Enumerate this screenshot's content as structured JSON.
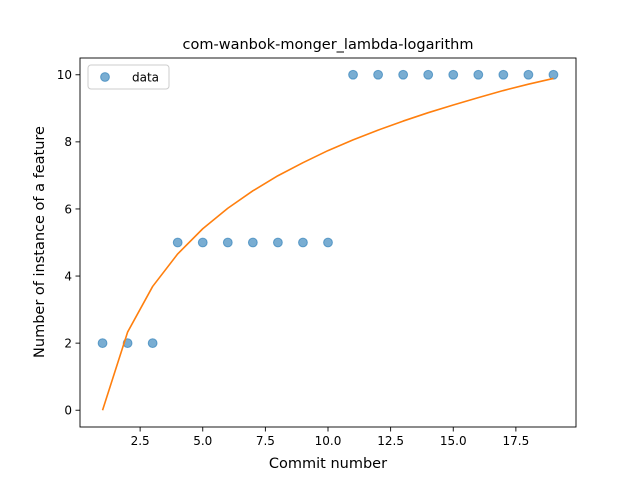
{
  "chart_data": {
    "type": "scatter",
    "title": "com-wanbok-monger_lambda-logarithm",
    "xlabel": "Commit number",
    "ylabel": "Number of instance of a feature",
    "xlim": [
      0.1,
      19.9
    ],
    "ylim": [
      -0.5,
      10.5
    ],
    "x_ticks": [
      2.5,
      5.0,
      7.5,
      10.0,
      12.5,
      15.0,
      17.5
    ],
    "x_tick_labels": [
      "2.5",
      "5.0",
      "7.5",
      "10.0",
      "12.5",
      "15.0",
      "17.5"
    ],
    "y_ticks": [
      0,
      2,
      4,
      6,
      8,
      10
    ],
    "y_tick_labels": [
      "0",
      "2",
      "4",
      "6",
      "8",
      "10"
    ],
    "grid": false,
    "legend_position": "top-left",
    "series": [
      {
        "name": "data",
        "kind": "scatter",
        "color": "#1f77b4",
        "x": [
          1,
          2,
          3,
          4,
          5,
          6,
          7,
          8,
          9,
          10,
          11,
          12,
          13,
          14,
          15,
          16,
          17,
          18,
          19
        ],
        "y": [
          2,
          2,
          2,
          5,
          5,
          5,
          5,
          5,
          5,
          5,
          10,
          10,
          10,
          10,
          10,
          10,
          10,
          10,
          10
        ]
      },
      {
        "kind": "line",
        "color": "#ff7f0e",
        "x": [
          1,
          2,
          3,
          4,
          5,
          6,
          7,
          8,
          9,
          10,
          11,
          12,
          13,
          14,
          15,
          16,
          17,
          18,
          19
        ],
        "y": [
          0,
          2.33,
          3.69,
          4.66,
          5.41,
          6.02,
          6.54,
          6.99,
          7.38,
          7.74,
          8.06,
          8.35,
          8.62,
          8.87,
          9.1,
          9.32,
          9.53,
          9.72,
          9.89
        ]
      }
    ]
  }
}
